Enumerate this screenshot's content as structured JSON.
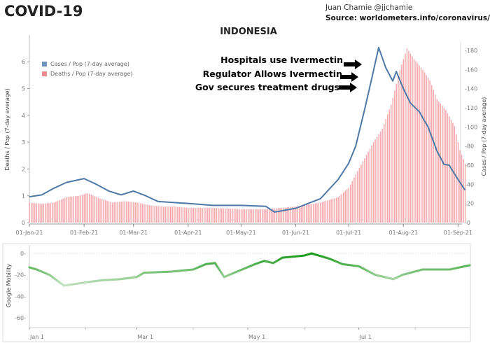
{
  "header": {
    "title": "COVID-19",
    "author": "Juan Chamie @jjchamie",
    "source": "Source: worldometers.info/coronavirus/"
  },
  "annotations": [
    "Hospitals use Ivermectin",
    "Regulator Allows Ivermectin",
    "Gov secures treatment drugs"
  ],
  "colors": {
    "cases": "#4e79a7",
    "deaths": "#f4a9ad",
    "mobility_high": "#1a9a1a",
    "mobility_low": "#b9dcb7"
  },
  "chart_data": [
    {
      "type": "bar+line",
      "title": "INDONESIA",
      "xlabel": "",
      "ylabel_left": "Deaths / Pop (7-day average)",
      "ylabel_right": "Cases / Pop (7-day average)",
      "ylim_left": [
        0,
        7
      ],
      "ylim_right": [
        0,
        180
      ],
      "yticks_left": [
        "0",
        "1",
        "2",
        "3",
        "4",
        "5",
        "6"
      ],
      "yticks_right": [
        "0",
        "20",
        "40",
        "60",
        "80",
        "100",
        "120",
        "140",
        "160",
        "180"
      ],
      "xticks": [
        "01-Jan-21",
        "01-Feb-21",
        "01-Mar-21",
        "01-Apr-21",
        "01-May-21",
        "01-Jun-21",
        "01-Jul-21",
        "01-Aug-21",
        "01-Sep-21"
      ],
      "legend": {
        "placement": "top-left",
        "entries": [
          "Cases / Pop (7-day average)",
          "Deaths / Pop (7-day average)"
        ]
      },
      "series": [
        {
          "name": "Deaths / Pop (7-day average)",
          "type": "bar",
          "axis": "left",
          "x": [
            "2021-01-01",
            "2021-01-08",
            "2021-01-15",
            "2021-01-22",
            "2021-01-29",
            "2021-02-03",
            "2021-02-10",
            "2021-02-17",
            "2021-02-24",
            "2021-03-03",
            "2021-03-10",
            "2021-03-17",
            "2021-03-24",
            "2021-04-01",
            "2021-04-15",
            "2021-05-01",
            "2021-05-15",
            "2021-06-01",
            "2021-06-15",
            "2021-06-25",
            "2021-07-01",
            "2021-07-05",
            "2021-07-10",
            "2021-07-15",
            "2021-07-20",
            "2021-07-25",
            "2021-07-30",
            "2021-08-03",
            "2021-08-07",
            "2021-08-12",
            "2021-08-16",
            "2021-08-20",
            "2021-08-25",
            "2021-08-30",
            "2021-09-02",
            "2021-09-05"
          ],
          "values": [
            0.75,
            0.7,
            0.75,
            0.95,
            1.0,
            1.1,
            0.9,
            0.75,
            0.8,
            0.75,
            0.65,
            0.6,
            0.6,
            0.55,
            0.55,
            0.5,
            0.5,
            0.6,
            0.75,
            0.95,
            1.3,
            1.8,
            2.4,
            3.0,
            3.5,
            4.4,
            5.7,
            6.5,
            6.1,
            5.7,
            5.3,
            4.6,
            4.2,
            3.6,
            2.7,
            2.2
          ]
        },
        {
          "name": "Cases / Pop (7-day average)",
          "type": "line",
          "axis": "right",
          "x": [
            "2021-01-01",
            "2021-01-08",
            "2021-01-15",
            "2021-01-22",
            "2021-02-01",
            "2021-02-08",
            "2021-02-15",
            "2021-02-22",
            "2021-03-01",
            "2021-03-08",
            "2021-03-15",
            "2021-04-01",
            "2021-04-15",
            "2021-05-01",
            "2021-05-15",
            "2021-05-20",
            "2021-06-01",
            "2021-06-15",
            "2021-06-25",
            "2021-07-01",
            "2021-07-05",
            "2021-07-10",
            "2021-07-14",
            "2021-07-18",
            "2021-07-22",
            "2021-07-26",
            "2021-07-28",
            "2021-08-01",
            "2021-08-05",
            "2021-08-10",
            "2021-08-15",
            "2021-08-20",
            "2021-08-24",
            "2021-08-27",
            "2021-09-01",
            "2021-09-05"
          ],
          "values": [
            27,
            29,
            36,
            42,
            46,
            40,
            33,
            29,
            33,
            28,
            22,
            20,
            18,
            18,
            17,
            11,
            15,
            25,
            45,
            62,
            80,
            118,
            150,
            183,
            162,
            148,
            158,
            140,
            125,
            116,
            100,
            75,
            61,
            60,
            45,
            34
          ]
        }
      ]
    },
    {
      "type": "line",
      "title": "",
      "ylabel": "Google Mobility",
      "ylim": [
        -70,
        3
      ],
      "yticks": [
        "0",
        "-20",
        "-40",
        "-60"
      ],
      "xticks": [
        "Jan 1",
        "Mar 1",
        "May 1",
        "Jul 1"
      ],
      "x": [
        "2021-01-01",
        "2021-01-05",
        "2021-01-12",
        "2021-01-20",
        "2021-02-01",
        "2021-02-10",
        "2021-02-20",
        "2021-03-01",
        "2021-03-05",
        "2021-03-20",
        "2021-04-01",
        "2021-04-08",
        "2021-04-13",
        "2021-04-18",
        "2021-04-25",
        "2021-05-05",
        "2021-05-10",
        "2021-05-15",
        "2021-05-20",
        "2021-06-01",
        "2021-06-05",
        "2021-06-15",
        "2021-06-22",
        "2021-07-01",
        "2021-07-10",
        "2021-07-20",
        "2021-07-25",
        "2021-08-05",
        "2021-08-20",
        "2021-08-31"
      ],
      "values": [
        -13,
        -15,
        -20,
        -30,
        -27,
        -25,
        -24,
        -22,
        -18,
        -17,
        -15,
        -10,
        -9,
        -22,
        -17,
        -10,
        -7,
        -9,
        -4,
        -2,
        0,
        -5,
        -10,
        -12,
        -20,
        -24,
        -20,
        -15,
        -15,
        -11
      ]
    }
  ]
}
